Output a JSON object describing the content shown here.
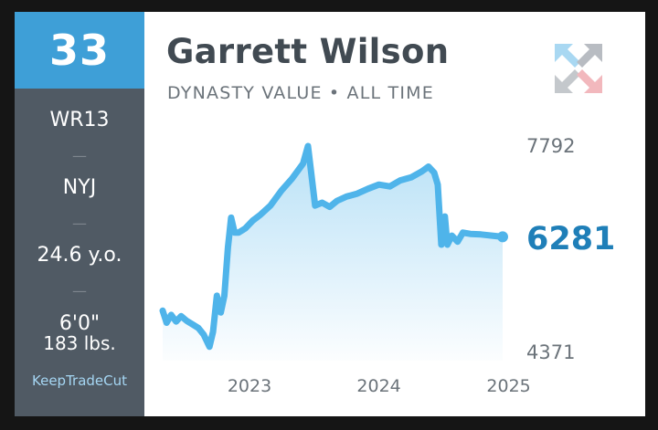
{
  "player": {
    "rank": "33",
    "name": "Garrett Wilson",
    "position": "WR13",
    "team": "NYJ",
    "age": "24.6 y.o.",
    "height": "6'0\"",
    "weight": "183 lbs.",
    "separator": "—"
  },
  "header": {
    "subtitle": "DYNASTY VALUE • ALL TIME"
  },
  "brand": {
    "name": "KeepTradeCut",
    "logo_icon": "ktc-arrows-logo"
  },
  "colors": {
    "accent": "#3e9fd7",
    "sidebar": "#505a64",
    "line": "#4fb4ea",
    "current_value": "#1f7fb8"
  },
  "chart_data": {
    "type": "line",
    "max_label": "7792",
    "min_label": "4371",
    "current_label": "6281",
    "current_value": 6281,
    "ylim": [
      4371,
      7792
    ],
    "xlim": [
      "2022-05-01",
      "2025-01-15"
    ],
    "x_ticks": [
      {
        "date": "2023-01-01",
        "label": "2023"
      },
      {
        "date": "2024-01-01",
        "label": "2024"
      },
      {
        "date": "2025-01-01",
        "label": "2025"
      }
    ],
    "series": [
      {
        "points": [
          [
            "2022-05-01",
            5050
          ],
          [
            "2022-05-12",
            4850
          ],
          [
            "2022-05-25",
            4980
          ],
          [
            "2022-06-08",
            4870
          ],
          [
            "2022-06-22",
            4960
          ],
          [
            "2022-07-08",
            4880
          ],
          [
            "2022-07-25",
            4820
          ],
          [
            "2022-08-10",
            4760
          ],
          [
            "2022-08-25",
            4650
          ],
          [
            "2022-09-10",
            4450
          ],
          [
            "2022-09-20",
            4700
          ],
          [
            "2022-10-01",
            5300
          ],
          [
            "2022-10-12",
            5020
          ],
          [
            "2022-10-22",
            5300
          ],
          [
            "2022-11-01",
            6100
          ],
          [
            "2022-11-10",
            6600
          ],
          [
            "2022-11-20",
            6350
          ],
          [
            "2022-12-01",
            6350
          ],
          [
            "2022-12-20",
            6420
          ],
          [
            "2023-01-10",
            6550
          ],
          [
            "2023-02-01",
            6650
          ],
          [
            "2023-03-01",
            6800
          ],
          [
            "2023-04-01",
            7050
          ],
          [
            "2023-05-01",
            7250
          ],
          [
            "2023-06-01",
            7500
          ],
          [
            "2023-06-15",
            7792
          ],
          [
            "2023-06-25",
            7300
          ],
          [
            "2023-07-05",
            6800
          ],
          [
            "2023-07-25",
            6850
          ],
          [
            "2023-08-15",
            6780
          ],
          [
            "2023-09-05",
            6880
          ],
          [
            "2023-10-01",
            6950
          ],
          [
            "2023-11-01",
            7000
          ],
          [
            "2023-12-01",
            7080
          ],
          [
            "2024-01-01",
            7150
          ],
          [
            "2024-02-01",
            7120
          ],
          [
            "2024-03-01",
            7220
          ],
          [
            "2024-04-01",
            7270
          ],
          [
            "2024-05-01",
            7370
          ],
          [
            "2024-05-20",
            7450
          ],
          [
            "2024-06-05",
            7350
          ],
          [
            "2024-06-15",
            7150
          ],
          [
            "2024-06-25",
            6150
          ],
          [
            "2024-07-05",
            6620
          ],
          [
            "2024-07-12",
            6150
          ],
          [
            "2024-07-25",
            6300
          ],
          [
            "2024-08-10",
            6200
          ],
          [
            "2024-08-25",
            6350
          ],
          [
            "2024-09-15",
            6330
          ],
          [
            "2024-10-15",
            6320
          ],
          [
            "2024-11-15",
            6300
          ],
          [
            "2024-12-15",
            6281
          ]
        ]
      }
    ]
  }
}
